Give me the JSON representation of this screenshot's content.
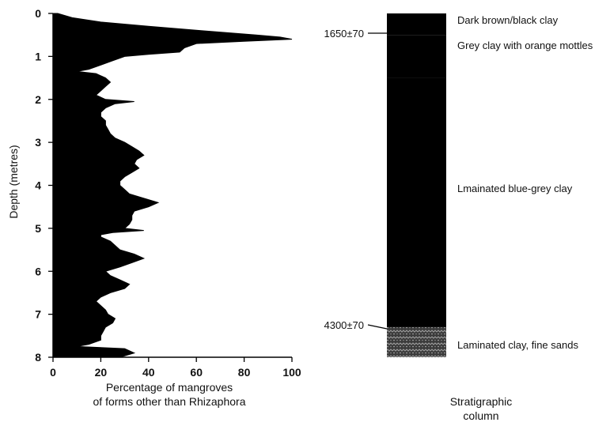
{
  "chart_data": [
    {
      "type": "area",
      "orientation": "vertical-depth",
      "xlabel": [
        "Percentage of mangroves",
        "of forms other than Rhizaphora"
      ],
      "ylabel": "Depth (metres)",
      "xlim": [
        0,
        100
      ],
      "ylim": [
        0,
        8
      ],
      "xticks": [
        "0",
        "20",
        "40",
        "60",
        "80",
        "100"
      ],
      "yticks": [
        "0",
        "1",
        "2",
        "3",
        "4",
        "5",
        "6",
        "7",
        "8"
      ],
      "grid": false,
      "fill_color": "#000000",
      "series": [
        {
          "depth": [
            0.0,
            0.1,
            0.2,
            0.3,
            0.4,
            0.5,
            0.55,
            0.6,
            0.65,
            0.7,
            0.8,
            0.9,
            0.95,
            1.0,
            1.1,
            1.2,
            1.3,
            1.35,
            1.4,
            1.5,
            1.6,
            1.7,
            1.8,
            1.9,
            2.0,
            2.05,
            2.1,
            2.2,
            2.3,
            2.4,
            2.5,
            2.6,
            2.7,
            2.8,
            2.9,
            3.0,
            3.1,
            3.2,
            3.3,
            3.4,
            3.5,
            3.6,
            3.7,
            3.8,
            3.9,
            4.0,
            4.1,
            4.2,
            4.3,
            4.4,
            4.5,
            4.6,
            4.7,
            4.8,
            4.9,
            5.0,
            5.05,
            5.1,
            5.15,
            5.2,
            5.3,
            5.4,
            5.5,
            5.6,
            5.7,
            5.8,
            5.9,
            6.0,
            6.1,
            6.2,
            6.3,
            6.4,
            6.5,
            6.6,
            6.7,
            6.8,
            6.9,
            7.0,
            7.1,
            7.2,
            7.3,
            7.4,
            7.5,
            7.6,
            7.7,
            7.75,
            7.8,
            7.9,
            8.0
          ],
          "values": [
            2,
            8,
            20,
            40,
            62,
            85,
            95,
            100,
            80,
            60,
            55,
            53,
            40,
            30,
            25,
            20,
            15,
            10,
            18,
            22,
            24,
            22,
            20,
            18,
            22,
            34,
            26,
            22,
            20,
            20,
            22,
            22,
            23,
            24,
            26,
            30,
            33,
            36,
            38,
            35,
            34,
            36,
            33,
            30,
            28,
            28,
            30,
            32,
            38,
            44,
            40,
            34,
            33,
            33,
            32,
            30,
            38,
            25,
            20,
            20,
            24,
            26,
            28,
            34,
            38,
            33,
            28,
            22,
            24,
            28,
            32,
            30,
            24,
            20,
            18,
            20,
            22,
            23,
            26,
            25,
            22,
            21,
            20,
            20,
            15,
            10,
            30,
            34,
            28
          ]
        }
      ]
    },
    {
      "type": "stratigraphic-column",
      "xlabel": [
        "Stratigraphic",
        "column"
      ],
      "dates": [
        {
          "label": "1650±70",
          "depth": 0.45
        },
        {
          "label": "4300±70",
          "depth": 7.3
        }
      ],
      "layers": [
        {
          "label": "Dark brown/black clay",
          "from": 0.0,
          "to": 0.5,
          "fill": "#000000"
        },
        {
          "label": "Grey clay with orange mottles",
          "from": 0.5,
          "to": 1.5,
          "fill": "#000000"
        },
        {
          "label": "Lmainated blue-grey clay",
          "from": 1.5,
          "to": 7.3,
          "fill": "#000000"
        },
        {
          "label": "Laminated clay, fine sands",
          "from": 7.3,
          "to": 8.0,
          "fill": "#3a3a3a"
        }
      ]
    }
  ]
}
